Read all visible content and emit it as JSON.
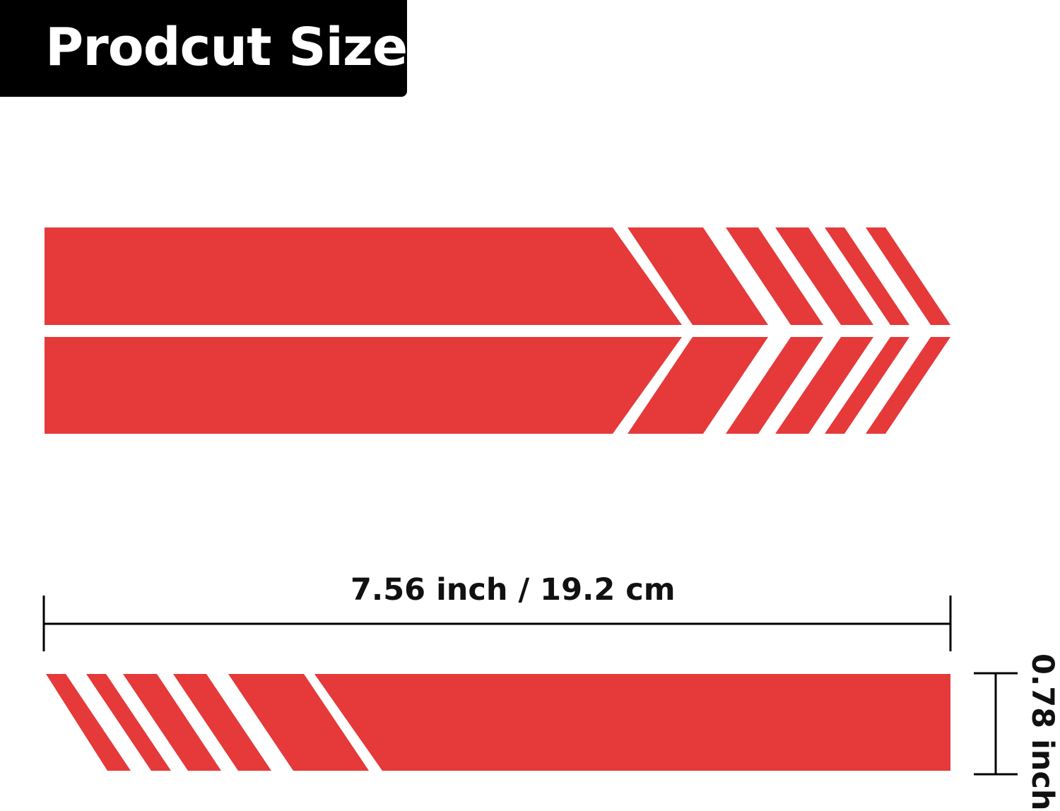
{
  "header": {
    "title": "Prodcut Size"
  },
  "dimensions": {
    "width_label": "7.56 inch / 19.2 cm",
    "height_label": "0.78 inch"
  },
  "colors": {
    "stripe": "#e5393a",
    "title_background": "#000000",
    "title_text": "#ffffff"
  }
}
